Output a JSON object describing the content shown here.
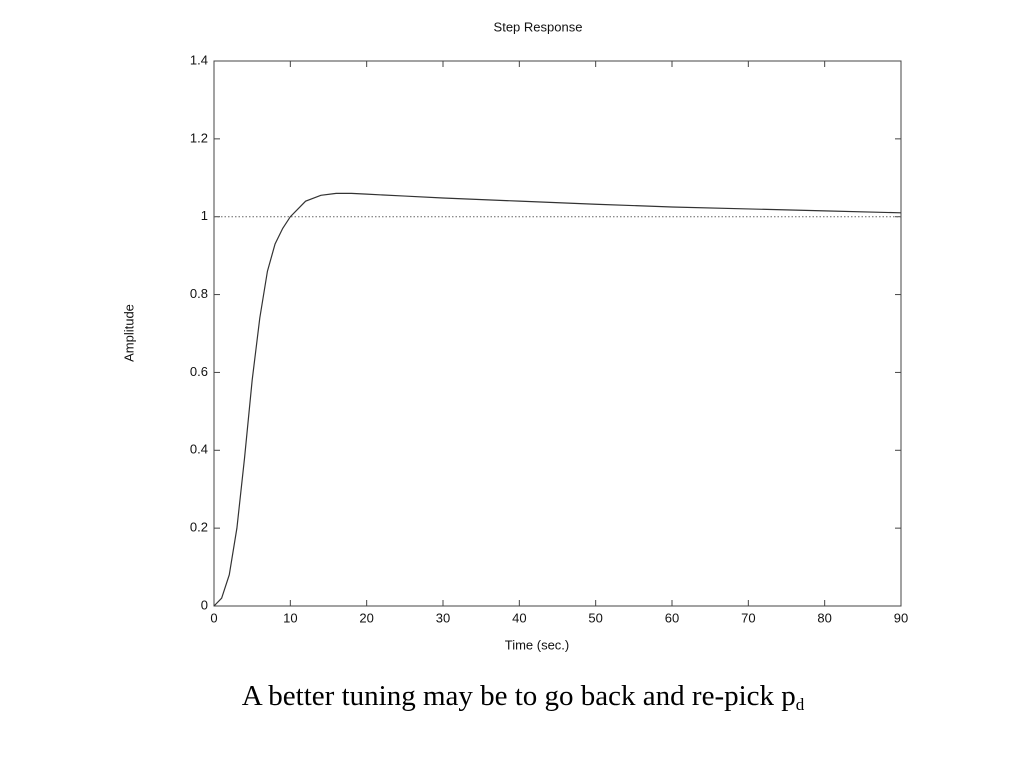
{
  "chart_data": {
    "type": "line",
    "title": "Step Response",
    "xlabel": "Time (sec.)",
    "ylabel": "Amplitude",
    "x": [
      0,
      1,
      2,
      3,
      4,
      5,
      6,
      7,
      8,
      9,
      10,
      12,
      14,
      16,
      18,
      20,
      25,
      30,
      40,
      50,
      60,
      70,
      80,
      90
    ],
    "values": [
      0,
      0.02,
      0.08,
      0.2,
      0.38,
      0.58,
      0.74,
      0.86,
      0.93,
      0.97,
      1.0,
      1.04,
      1.055,
      1.06,
      1.06,
      1.058,
      1.053,
      1.048,
      1.04,
      1.032,
      1.025,
      1.02,
      1.015,
      1.01
    ],
    "color": "#333333",
    "reference": 1,
    "xlim": [
      0,
      90
    ],
    "xticks": [
      0,
      10,
      20,
      30,
      40,
      50,
      60,
      70,
      80,
      90
    ],
    "ylim": [
      0,
      1.4
    ],
    "yticks": [
      0,
      0.2,
      0.4,
      0.6,
      0.8,
      1,
      1.2,
      1.4
    ]
  },
  "caption": {
    "text": "A better tuning may be to go back and re-pick p",
    "subscript": "d"
  }
}
